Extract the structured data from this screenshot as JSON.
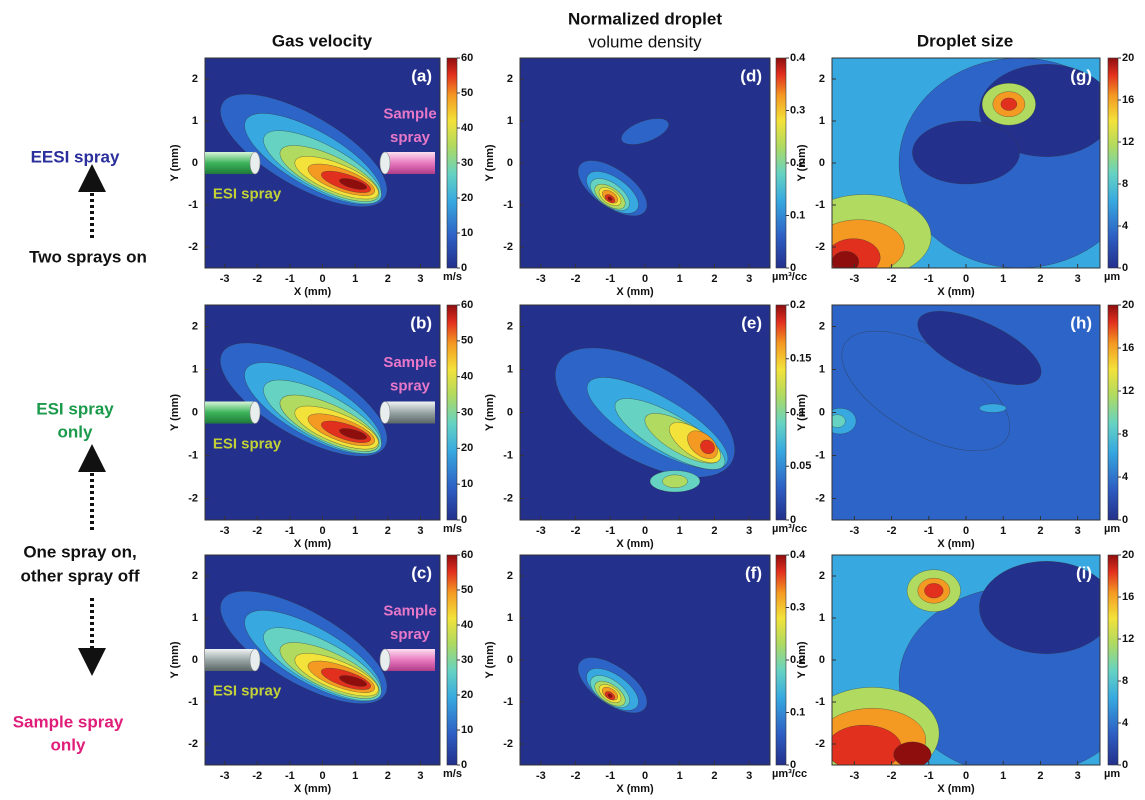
{
  "column_titles": [
    [
      "Gas velocity"
    ],
    [
      "Normalized droplet",
      "volume density"
    ],
    [
      "Droplet size"
    ]
  ],
  "row_labels": {
    "top": [
      "EESI spray"
    ],
    "top_note": [
      "Two  sprays on"
    ],
    "middle": [
      "ESI spray",
      "only"
    ],
    "middle_note": [
      "One spray on,",
      "other spray off"
    ],
    "bottom": [
      "Sample spray",
      "only"
    ]
  },
  "axes": {
    "xlabel": "X (mm)",
    "ylabel": "Y (mm)",
    "xticks": [
      -3,
      -2,
      -1,
      0,
      1,
      2,
      3
    ],
    "yticks": [
      -2,
      -1,
      0,
      1,
      2
    ],
    "xlim": [
      -3.6,
      3.6
    ],
    "ylim": [
      -2.5,
      2.5
    ]
  },
  "rows": [
    [
      {
        "label": "(a)",
        "colorbar": {
          "ticks": [
            0,
            10,
            20,
            30,
            40,
            50,
            60
          ],
          "unit": "m/s"
        },
        "annotations": {
          "esi": "ESI spray",
          "sample": [
            "Sample",
            "spray"
          ]
        }
      },
      {
        "label": "(d)",
        "colorbar": {
          "ticks": [
            0,
            0.1,
            0.2,
            0.3,
            0.4
          ],
          "unit": "µm³/cc"
        }
      },
      {
        "label": "(g)",
        "colorbar": {
          "ticks": [
            0,
            4,
            8,
            12,
            16,
            20
          ],
          "unit": "µm"
        }
      }
    ],
    [
      {
        "label": "(b)",
        "colorbar": {
          "ticks": [
            0,
            10,
            20,
            30,
            40,
            50,
            60
          ],
          "unit": "m/s"
        },
        "annotations": {
          "esi": "ESI spray",
          "sample": [
            "Sample",
            "spray"
          ]
        }
      },
      {
        "label": "(e)",
        "colorbar": {
          "ticks": [
            0,
            0.05,
            0.1,
            0.15,
            0.2
          ],
          "unit": "µm³/cc"
        }
      },
      {
        "label": "(h)",
        "colorbar": {
          "ticks": [
            0,
            4,
            8,
            12,
            16,
            20
          ],
          "unit": "µm"
        }
      }
    ],
    [
      {
        "label": "(c)",
        "colorbar": {
          "ticks": [
            0,
            10,
            20,
            30,
            40,
            50,
            60
          ],
          "unit": "m/s"
        },
        "annotations": {
          "esi": "ESI spray",
          "sample": [
            "Sample",
            "spray"
          ]
        }
      },
      {
        "label": "(f)",
        "colorbar": {
          "ticks": [
            0,
            0.1,
            0.2,
            0.3,
            0.4
          ],
          "unit": "µm³/cc"
        }
      },
      {
        "label": "(i)",
        "colorbar": {
          "ticks": [
            0,
            4,
            8,
            12,
            16,
            20
          ],
          "unit": "µm"
        }
      }
    ]
  ]
}
